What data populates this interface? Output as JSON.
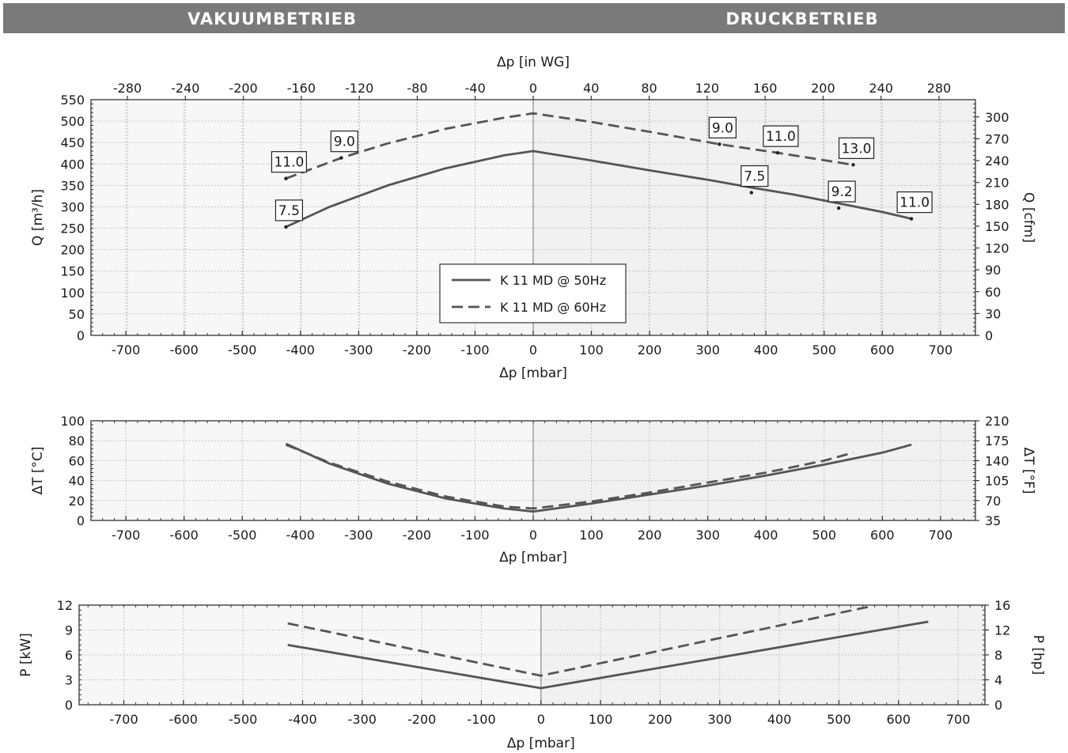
{
  "header": {
    "left_label": "VAKUUMBETRIEB",
    "right_label": "DRUCKBETRIEB"
  },
  "colors": {
    "header_bg": "#7a7a7a",
    "series_line": "#555555",
    "vacuum_bg": "#f7f7f7",
    "pressure_bg": "#f1f1f1",
    "grid": "#c4c4c4"
  },
  "chart_data": [
    {
      "id": "flow",
      "type": "line",
      "xlabel": "Δp [mbar]",
      "x2label": "Δp [in WG]",
      "ylabel": "Q [m³/h]",
      "y2label": "Q [cfm]",
      "xlim": [
        -760,
        760
      ],
      "ylim": [
        0,
        550
      ],
      "x_ticks": [
        -700,
        -600,
        -500,
        -400,
        -300,
        -200,
        -100,
        0,
        100,
        200,
        300,
        400,
        500,
        600,
        700
      ],
      "x2_ticks": [
        -280,
        -240,
        -200,
        -160,
        -120,
        -80,
        -40,
        0,
        40,
        80,
        120,
        160,
        200,
        240,
        280
      ],
      "y_ticks": [
        0,
        50,
        100,
        150,
        200,
        250,
        300,
        350,
        400,
        450,
        500,
        550
      ],
      "y2_ticks": [
        0,
        30,
        60,
        90,
        120,
        150,
        180,
        210,
        240,
        270,
        300
      ],
      "grid": true,
      "legend_position": "bottom-center",
      "series": [
        {
          "name": "K 11 MD @ 50Hz",
          "style": "solid",
          "x": [
            -425,
            -350,
            -250,
            -150,
            -50,
            0,
            100,
            200,
            300,
            375,
            450,
            525,
            600,
            650
          ],
          "y": [
            253,
            300,
            350,
            390,
            420,
            430,
            408,
            385,
            363,
            345,
            328,
            308,
            288,
            272
          ]
        },
        {
          "name": "K 11 MD @ 60Hz",
          "style": "dashed",
          "x": [
            -425,
            -330,
            -250,
            -150,
            -50,
            0,
            100,
            200,
            320,
            420,
            550
          ],
          "y": [
            366,
            414,
            448,
            482,
            508,
            518,
            498,
            475,
            446,
            426,
            398
          ]
        }
      ],
      "annotations": [
        {
          "x": -425,
          "y": 253,
          "text": "7.5"
        },
        {
          "x": -425,
          "y": 366,
          "text": "11.0"
        },
        {
          "x": -330,
          "y": 414,
          "text": "9.0"
        },
        {
          "x": 320,
          "y": 446,
          "text": "9.0"
        },
        {
          "x": 420,
          "y": 426,
          "text": "11.0"
        },
        {
          "x": 550,
          "y": 398,
          "text": "13.0"
        },
        {
          "x": 375,
          "y": 333,
          "text": "7.5"
        },
        {
          "x": 525,
          "y": 297,
          "text": "9.2"
        },
        {
          "x": 650,
          "y": 272,
          "text": "11.0"
        }
      ]
    },
    {
      "id": "temperature",
      "type": "line",
      "xlabel": "Δp [mbar]",
      "ylabel": "ΔT [°C]",
      "y2label": "ΔT [°F]",
      "xlim": [
        -760,
        760
      ],
      "ylim": [
        0,
        100
      ],
      "x_ticks": [
        -700,
        -600,
        -500,
        -400,
        -300,
        -200,
        -100,
        0,
        100,
        200,
        300,
        400,
        500,
        600,
        700
      ],
      "y_ticks": [
        0,
        20,
        40,
        60,
        80,
        100
      ],
      "y2_ticks": [
        35,
        70,
        105,
        140,
        175,
        210
      ],
      "grid": true,
      "series": [
        {
          "style": "solid",
          "x": [
            -425,
            -350,
            -250,
            -150,
            -50,
            0,
            100,
            200,
            300,
            400,
            500,
            600,
            650
          ],
          "y": [
            77,
            57,
            37,
            22,
            12,
            9,
            17,
            26,
            35,
            45,
            56,
            68,
            76
          ]
        },
        {
          "style": "dashed",
          "x": [
            -425,
            -350,
            -250,
            -150,
            -50,
            0,
            100,
            200,
            300,
            400,
            500,
            550
          ],
          "y": [
            76,
            58,
            39,
            24,
            14,
            12,
            19,
            28,
            38,
            48,
            60,
            68
          ]
        }
      ]
    },
    {
      "id": "power",
      "type": "line",
      "xlabel": "Δp [mbar]",
      "ylabel": "P [kW]",
      "y2label": "P [hp]",
      "xlim": [
        -775,
        745
      ],
      "ylim": [
        0,
        12
      ],
      "x_ticks": [
        -700,
        -600,
        -500,
        -400,
        -300,
        -200,
        -100,
        0,
        100,
        200,
        300,
        400,
        500,
        600,
        700
      ],
      "y_ticks": [
        0,
        3,
        6,
        9,
        12
      ],
      "y2_ticks": [
        0,
        4,
        8,
        12,
        16
      ],
      "grid": true,
      "series": [
        {
          "style": "solid",
          "x": [
            -425,
            0,
            650
          ],
          "y": [
            7.2,
            2.0,
            10.0
          ]
        },
        {
          "style": "dashed",
          "x": [
            -425,
            0,
            550
          ],
          "y": [
            9.8,
            3.5,
            11.8
          ]
        }
      ]
    }
  ]
}
